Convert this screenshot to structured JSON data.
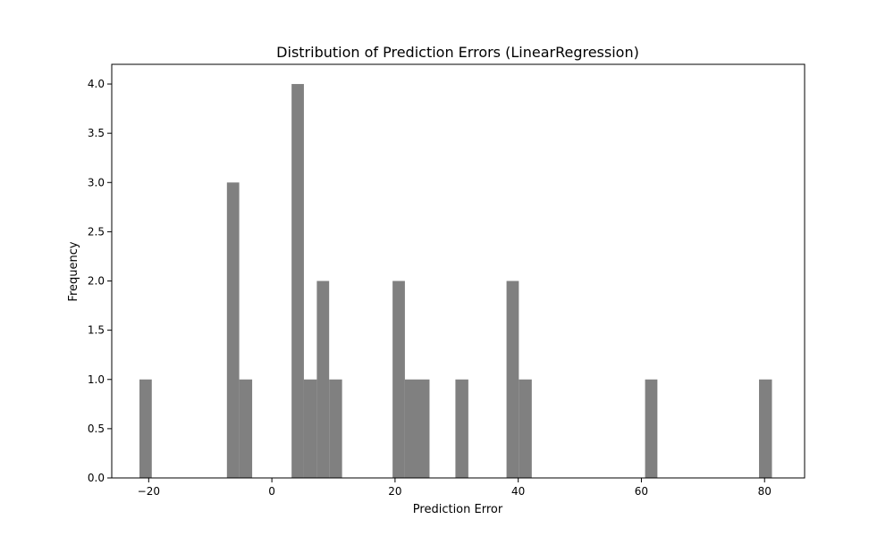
{
  "chart_data": {
    "type": "bar",
    "title": "Distribution of Prediction Errors (LinearRegression)",
    "xlabel": "Prediction Error",
    "ylabel": "Frequency",
    "xlim": [
      -26,
      86.5
    ],
    "ylim": [
      0,
      4.2
    ],
    "xticks": [
      -20,
      0,
      20,
      40,
      60,
      80
    ],
    "xtick_labels": [
      "−20",
      "0",
      "20",
      "40",
      "60",
      "80"
    ],
    "yticks": [
      0,
      0.5,
      1,
      1.5,
      2,
      2.5,
      3,
      3.5,
      4
    ],
    "ytick_labels": [
      "0.0",
      "0.5",
      "1.0",
      "1.5",
      "2.0",
      "2.5",
      "3.0",
      "3.5",
      "4.0"
    ],
    "bar_color": "#808080",
    "bins": [
      {
        "x0": -21.5,
        "x1": -19.5,
        "value": 1
      },
      {
        "x0": -7.3,
        "x1": -5.3,
        "value": 3
      },
      {
        "x0": -5.3,
        "x1": -3.2,
        "value": 1
      },
      {
        "x0": 3.2,
        "x1": 5.2,
        "value": 4
      },
      {
        "x0": 5.2,
        "x1": 7.3,
        "value": 1
      },
      {
        "x0": 7.3,
        "x1": 9.3,
        "value": 2
      },
      {
        "x0": 9.3,
        "x1": 11.4,
        "value": 1
      },
      {
        "x0": 19.6,
        "x1": 21.6,
        "value": 2
      },
      {
        "x0": 21.6,
        "x1": 25.6,
        "value": 1
      },
      {
        "x0": 29.8,
        "x1": 31.9,
        "value": 1
      },
      {
        "x0": 38.1,
        "x1": 40.1,
        "value": 2
      },
      {
        "x0": 40.1,
        "x1": 42.2,
        "value": 1
      },
      {
        "x0": 60.6,
        "x1": 62.6,
        "value": 1
      },
      {
        "x0": 79.1,
        "x1": 81.2,
        "value": 1
      }
    ]
  }
}
